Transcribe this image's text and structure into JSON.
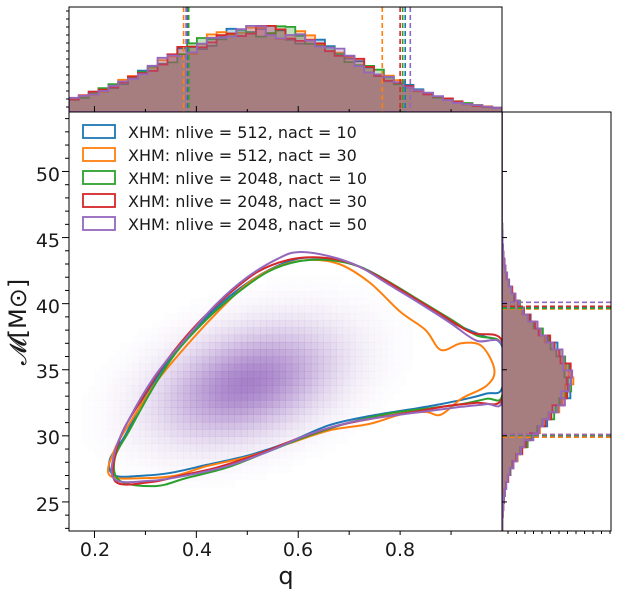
{
  "chart_data": {
    "type": "corner-kde",
    "title": "",
    "xlabel": "q",
    "ylabel": "𝓜[M⊙]",
    "xlim": [
      0.15,
      1.0
    ],
    "ylim": [
      22.8,
      54.5
    ],
    "xticks": [
      0.2,
      0.4,
      0.6,
      0.8
    ],
    "xtick_labels": [
      "0.2",
      "0.4",
      "0.6",
      "0.8"
    ],
    "yticks": [
      25,
      30,
      35,
      40,
      45,
      50
    ],
    "ytick_labels": [
      "25",
      "30",
      "35",
      "40",
      "45",
      "50"
    ],
    "legend_position": "top-left",
    "density_peak": {
      "q": 0.5,
      "chirp_mass": 34
    },
    "series": [
      {
        "name": "XHM: nlive = 512, nact = 10",
        "color": "#1f77b4",
        "q_quantiles": [
          0.383,
          0.81
        ],
        "mc_quantiles": [
          30.0,
          39.7
        ],
        "contour": [
          [
            0.24,
            27.0
          ],
          [
            0.3,
            27.0
          ],
          [
            0.35,
            27.2
          ],
          [
            0.42,
            27.8
          ],
          [
            0.5,
            28.5
          ],
          [
            0.58,
            29.5
          ],
          [
            0.66,
            30.8
          ],
          [
            0.74,
            31.5
          ],
          [
            0.82,
            32.0
          ],
          [
            0.88,
            32.4
          ],
          [
            0.93,
            32.8
          ],
          [
            0.97,
            33.2
          ],
          [
            1.0,
            33.6
          ],
          [
            1.0,
            36.8
          ],
          [
            0.96,
            37.6
          ],
          [
            0.9,
            38.6
          ],
          [
            0.84,
            40.0
          ],
          [
            0.78,
            41.6
          ],
          [
            0.72,
            42.8
          ],
          [
            0.66,
            43.4
          ],
          [
            0.6,
            43.4
          ],
          [
            0.54,
            42.5
          ],
          [
            0.48,
            41.0
          ],
          [
            0.42,
            39.0
          ],
          [
            0.36,
            36.5
          ],
          [
            0.3,
            33.0
          ],
          [
            0.26,
            30.0
          ],
          [
            0.23,
            28.2
          ]
        ]
      },
      {
        "name": "XHM: nlive = 512, nact = 30",
        "color": "#ff7f0e",
        "q_quantiles": [
          0.375,
          0.765
        ],
        "mc_quantiles": [
          29.9,
          39.6
        ],
        "contour": [
          [
            0.23,
            27.0
          ],
          [
            0.3,
            26.8
          ],
          [
            0.36,
            27.0
          ],
          [
            0.42,
            27.7
          ],
          [
            0.5,
            28.4
          ],
          [
            0.58,
            29.4
          ],
          [
            0.66,
            30.4
          ],
          [
            0.74,
            30.9
          ],
          [
            0.8,
            31.6
          ],
          [
            0.85,
            31.8
          ],
          [
            0.88,
            31.6
          ],
          [
            0.92,
            32.8
          ],
          [
            0.97,
            33.8
          ],
          [
            0.985,
            35.0
          ],
          [
            0.96,
            36.8
          ],
          [
            0.92,
            37.0
          ],
          [
            0.88,
            36.5
          ],
          [
            0.85,
            38.0
          ],
          [
            0.8,
            39.4
          ],
          [
            0.74,
            41.6
          ],
          [
            0.68,
            43.0
          ],
          [
            0.62,
            43.3
          ],
          [
            0.56,
            42.8
          ],
          [
            0.5,
            41.5
          ],
          [
            0.44,
            39.3
          ],
          [
            0.38,
            36.8
          ],
          [
            0.32,
            34.0
          ],
          [
            0.27,
            31.0
          ],
          [
            0.24,
            29.0
          ]
        ]
      },
      {
        "name": "XHM: nlive = 2048, nact = 10",
        "color": "#2ca02c",
        "q_quantiles": [
          0.385,
          0.805
        ],
        "mc_quantiles": [
          30.05,
          39.65
        ],
        "contour": [
          [
            0.25,
            26.6
          ],
          [
            0.32,
            26.2
          ],
          [
            0.38,
            26.8
          ],
          [
            0.46,
            27.6
          ],
          [
            0.54,
            28.8
          ],
          [
            0.62,
            30.0
          ],
          [
            0.7,
            31.0
          ],
          [
            0.78,
            31.7
          ],
          [
            0.86,
            32.1
          ],
          [
            0.92,
            32.4
          ],
          [
            0.97,
            32.8
          ],
          [
            1.0,
            33.0
          ],
          [
            1.0,
            36.9
          ],
          [
            0.95,
            37.6
          ],
          [
            0.9,
            38.8
          ],
          [
            0.84,
            40.2
          ],
          [
            0.78,
            41.6
          ],
          [
            0.72,
            42.8
          ],
          [
            0.66,
            43.3
          ],
          [
            0.6,
            43.2
          ],
          [
            0.54,
            42.4
          ],
          [
            0.48,
            40.8
          ],
          [
            0.42,
            38.8
          ],
          [
            0.36,
            36.3
          ],
          [
            0.31,
            33.3
          ],
          [
            0.27,
            30.5
          ],
          [
            0.24,
            28.3
          ]
        ]
      },
      {
        "name": "XHM: nlive = 2048, nact = 30",
        "color": "#d62728",
        "q_quantiles": [
          0.38,
          0.8
        ],
        "mc_quantiles": [
          30.1,
          39.8
        ],
        "contour": [
          [
            0.24,
            26.6
          ],
          [
            0.31,
            26.5
          ],
          [
            0.37,
            27.0
          ],
          [
            0.44,
            27.6
          ],
          [
            0.52,
            28.6
          ],
          [
            0.6,
            29.8
          ],
          [
            0.68,
            30.8
          ],
          [
            0.76,
            31.4
          ],
          [
            0.84,
            31.9
          ],
          [
            0.9,
            32.3
          ],
          [
            0.95,
            32.5
          ],
          [
            1.0,
            32.8
          ],
          [
            1.0,
            37.2
          ],
          [
            0.94,
            37.8
          ],
          [
            0.88,
            39.2
          ],
          [
            0.82,
            40.6
          ],
          [
            0.76,
            42.0
          ],
          [
            0.7,
            43.1
          ],
          [
            0.64,
            43.5
          ],
          [
            0.58,
            43.3
          ],
          [
            0.52,
            42.4
          ],
          [
            0.46,
            40.6
          ],
          [
            0.4,
            38.4
          ],
          [
            0.34,
            35.6
          ],
          [
            0.29,
            32.6
          ],
          [
            0.25,
            29.8
          ]
        ]
      },
      {
        "name": "XHM: nlive = 2048, nact = 50",
        "color": "#9467bd",
        "q_quantiles": [
          0.38,
          0.82
        ],
        "mc_quantiles": [
          30.1,
          40.1
        ],
        "contour": [
          [
            0.24,
            26.7
          ],
          [
            0.31,
            26.6
          ],
          [
            0.38,
            27.0
          ],
          [
            0.46,
            27.7
          ],
          [
            0.54,
            28.8
          ],
          [
            0.62,
            30.1
          ],
          [
            0.7,
            31.0
          ],
          [
            0.78,
            31.5
          ],
          [
            0.86,
            31.9
          ],
          [
            0.92,
            32.2
          ],
          [
            0.97,
            32.4
          ],
          [
            1.0,
            32.6
          ],
          [
            1.0,
            36.9
          ],
          [
            0.95,
            37.2
          ],
          [
            0.9,
            38.5
          ],
          [
            0.84,
            40.0
          ],
          [
            0.78,
            41.4
          ],
          [
            0.72,
            42.8
          ],
          [
            0.66,
            43.6
          ],
          [
            0.6,
            43.9
          ],
          [
            0.56,
            43.4
          ],
          [
            0.5,
            42.0
          ],
          [
            0.44,
            40.0
          ],
          [
            0.38,
            37.4
          ],
          [
            0.32,
            34.6
          ],
          [
            0.27,
            31.4
          ],
          [
            0.24,
            28.8
          ]
        ]
      }
    ]
  }
}
